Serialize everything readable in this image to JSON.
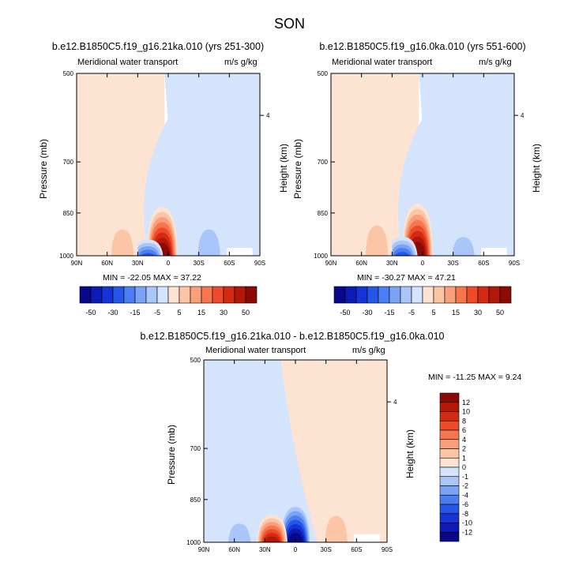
{
  "figure_title": "SON",
  "panels": [
    {
      "title": "b.e12.B1850C5.f19_g16.21ka.010 (yrs 251-300)",
      "variable": "Meridional water transport",
      "units": "m/s g/kg",
      "ylabel_left": "Pressure (mb)",
      "ylabel_right": "Height (km)",
      "stats": "MIN = -22.05  MAX =  37.22"
    },
    {
      "title": "b.e12.B1850C5.f19_g16.0ka.010 (yrs 551-600)",
      "variable": "Meridional water transport",
      "units": "m/s g/kg",
      "ylabel_left": "Pressure (mb)",
      "ylabel_right": "Height (km)",
      "stats": "MIN = -30.27  MAX =  47.21"
    },
    {
      "title": "b.e12.B1850C5.f19_g16.21ka.010 - b.e12.B1850C5.f19_g16.0ka.010",
      "variable": "Meridional water transport",
      "units": "m/s g/kg",
      "ylabel_left": "Pressure (mb)",
      "ylabel_right": "Height (km)",
      "stats": "MIN = -11.25  MAX =  9.24"
    }
  ],
  "chart_data": [
    {
      "type": "heatmap",
      "title": "b.e12.B1850C5.f19_g16.21ka.010 (yrs 251-300)",
      "xlabel": "",
      "ylabel": "Pressure (mb)",
      "x_ticks": [
        "90N",
        "60N",
        "30N",
        "0",
        "30S",
        "60S",
        "90S"
      ],
      "x_range": [
        90,
        -90
      ],
      "y_ticks": [
        500,
        700,
        850,
        1000
      ],
      "y_range": [
        1000,
        500
      ],
      "y2_ticks": [
        4
      ],
      "y2_label": "Height (km)",
      "min": -22.05,
      "max": 37.22,
      "colorbar_levels": [
        -50,
        -40,
        -30,
        -20,
        -15,
        -10,
        -5,
        -1,
        1,
        5,
        10,
        15,
        20,
        30,
        40,
        50
      ],
      "colorbar_labels": [
        "-50",
        "-30",
        "-15",
        "-5",
        "5",
        "15",
        "30",
        "50"
      ],
      "features": [
        {
          "lat": 6,
          "p_top": 830,
          "sign": "positive",
          "peak": 37.22
        },
        {
          "lat": 20,
          "p_top": 940,
          "sign": "negative",
          "peak": -22.05
        },
        {
          "lat": -40,
          "p_top": 840,
          "sign": "negative",
          "peak": -10
        },
        {
          "lat": 45,
          "p_top": 840,
          "sign": "positive",
          "peak": 4
        }
      ]
    },
    {
      "type": "heatmap",
      "title": "b.e12.B1850C5.f19_g16.0ka.010 (yrs 551-600)",
      "xlabel": "",
      "ylabel": "Pressure (mb)",
      "x_ticks": [
        "90N",
        "60N",
        "30N",
        "0",
        "30S",
        "60S",
        "90S"
      ],
      "x_range": [
        90,
        -90
      ],
      "y_ticks": [
        500,
        700,
        850,
        1000
      ],
      "y_range": [
        1000,
        500
      ],
      "y2_ticks": [
        4
      ],
      "y2_label": "Height (km)",
      "min": -30.27,
      "max": 47.21,
      "colorbar_levels": [
        -50,
        -40,
        -30,
        -20,
        -15,
        -10,
        -5,
        -1,
        1,
        5,
        10,
        15,
        20,
        30,
        40,
        50
      ],
      "colorbar_labels": [
        "-50",
        "-30",
        "-15",
        "-5",
        "5",
        "15",
        "30",
        "50"
      ],
      "features": [
        {
          "lat": 5,
          "p_top": 820,
          "sign": "positive",
          "peak": 47.21
        },
        {
          "lat": 20,
          "p_top": 930,
          "sign": "negative",
          "peak": -30.27
        },
        {
          "lat": -40,
          "p_top": 880,
          "sign": "negative",
          "peak": -12
        },
        {
          "lat": 45,
          "p_top": 820,
          "sign": "positive",
          "peak": 5
        }
      ]
    },
    {
      "type": "heatmap",
      "title": "b.e12.B1850C5.f19_g16.21ka.010 - b.e12.B1850C5.f19_g16.0ka.010",
      "xlabel": "",
      "ylabel": "Pressure (mb)",
      "x_ticks": [
        "90N",
        "60N",
        "30N",
        "0",
        "30S",
        "60S",
        "90S"
      ],
      "x_range": [
        90,
        -90
      ],
      "y_ticks": [
        500,
        700,
        850,
        1000
      ],
      "y_range": [
        1000,
        500
      ],
      "y2_ticks": [
        4
      ],
      "y2_label": "Height (km)",
      "min": -11.25,
      "max": 9.24,
      "colorbar_levels": [
        -12,
        -10,
        -8,
        -6,
        -4,
        -2,
        -1,
        0,
        1,
        2,
        4,
        6,
        8,
        10,
        12
      ],
      "colorbar_labels": [
        "12",
        "10",
        "8",
        "6",
        "4",
        "2",
        "1",
        "0",
        "-1",
        "-2",
        "-4",
        "-6",
        "-8",
        "-10",
        "-12"
      ],
      "features": [
        {
          "lat": 0,
          "p_top": 860,
          "sign": "negative",
          "peak": -11.25
        },
        {
          "lat": 23,
          "p_top": 900,
          "sign": "positive",
          "peak": 9.24
        },
        {
          "lat": -40,
          "p_top": 840,
          "sign": "positive",
          "peak": 3
        },
        {
          "lat": 55,
          "p_top": 880,
          "sign": "negative",
          "peak": -3
        }
      ]
    }
  ],
  "colors": {
    "neg": [
      "#08088a",
      "#0d1bb5",
      "#1533d6",
      "#2457e8",
      "#4a7ef2",
      "#7aa3f6",
      "#a9c5f9",
      "#d4e4fc"
    ],
    "pos": [
      "#fde3d2",
      "#fcc5a5",
      "#f9a07a",
      "#f6764f",
      "#ee4b2a",
      "#d42a14",
      "#b11808",
      "#8c0a04"
    ]
  }
}
